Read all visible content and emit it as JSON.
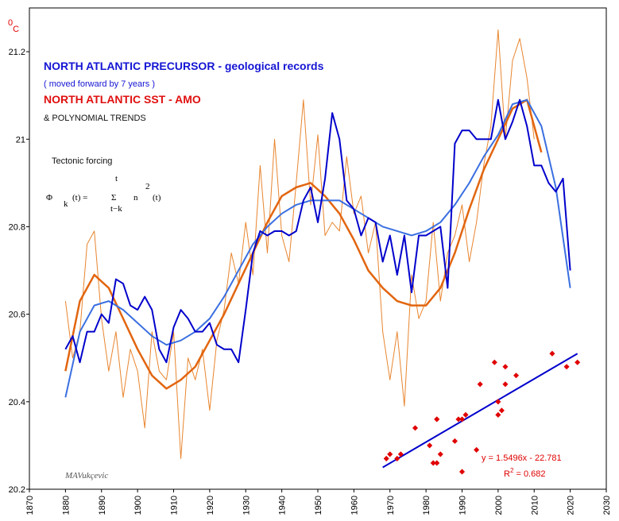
{
  "chart_data": {
    "type": "line",
    "y_unit": {
      "sup": "0",
      "base": "C"
    },
    "xlim": [
      1870,
      2030
    ],
    "xticks": [
      1870,
      1880,
      1890,
      1900,
      1910,
      1920,
      1930,
      1940,
      1950,
      1960,
      1970,
      1980,
      1990,
      2000,
      2010,
      2020,
      2030
    ],
    "ylim": [
      20.2,
      21.3
    ],
    "yticks": [
      20.2,
      20.4,
      20.6,
      20.8,
      21,
      21.2
    ],
    "series": [
      {
        "name": "NORTH ATLANTIC SST - AMO",
        "legend_color": "#e01010",
        "color": "#e8852e",
        "width": 1,
        "x": [
          1880,
          1882,
          1884,
          1886,
          1888,
          1890,
          1892,
          1894,
          1896,
          1898,
          1900,
          1902,
          1904,
          1906,
          1908,
          1910,
          1912,
          1914,
          1916,
          1918,
          1920,
          1922,
          1924,
          1926,
          1928,
          1930,
          1932,
          1934,
          1936,
          1938,
          1940,
          1942,
          1944,
          1946,
          1948,
          1950,
          1952,
          1954,
          1956,
          1958,
          1960,
          1962,
          1964,
          1966,
          1968,
          1970,
          1972,
          1974,
          1976,
          1978,
          1980,
          1982,
          1984,
          1986,
          1988,
          1990,
          1992,
          1994,
          1996,
          1998,
          2000,
          2002,
          2004,
          2006,
          2008,
          2010
        ],
        "values": [
          20.63,
          20.5,
          20.56,
          20.76,
          20.79,
          20.59,
          20.47,
          20.56,
          20.41,
          20.52,
          20.47,
          20.34,
          20.56,
          20.47,
          20.45,
          20.56,
          20.27,
          20.5,
          20.45,
          20.52,
          20.38,
          20.54,
          20.61,
          20.74,
          20.67,
          20.81,
          20.69,
          20.94,
          20.74,
          21.0,
          20.78,
          20.72,
          20.9,
          21.09,
          20.85,
          21.01,
          20.78,
          20.81,
          20.79,
          20.96,
          20.83,
          20.87,
          20.74,
          20.81,
          20.56,
          20.45,
          20.56,
          20.39,
          20.69,
          20.59,
          20.63,
          20.81,
          20.63,
          20.74,
          20.78,
          20.85,
          20.72,
          20.81,
          20.94,
          21.03,
          21.25,
          21.0,
          21.18,
          21.23,
          21.14,
          21.0
        ]
      },
      {
        "color": "#e2650f",
        "width": 2.5,
        "x": [
          1880,
          1884,
          1888,
          1892,
          1896,
          1900,
          1904,
          1908,
          1912,
          1916,
          1920,
          1924,
          1928,
          1932,
          1936,
          1940,
          1944,
          1948,
          1952,
          1956,
          1960,
          1964,
          1968,
          1972,
          1976,
          1980,
          1984,
          1988,
          1992,
          1996,
          2000,
          2004,
          2008,
          2012
        ],
        "values": [
          20.47,
          20.63,
          20.69,
          20.66,
          20.59,
          20.52,
          20.46,
          20.43,
          20.45,
          20.48,
          20.54,
          20.6,
          20.67,
          20.74,
          20.81,
          20.87,
          20.89,
          20.9,
          20.87,
          20.83,
          20.77,
          20.7,
          20.66,
          20.63,
          20.62,
          20.62,
          20.66,
          20.74,
          20.84,
          20.93,
          21.0,
          21.07,
          21.09,
          20.97
        ]
      },
      {
        "color": "#3a6fe0",
        "width": 2,
        "x": [
          1880,
          1884,
          1888,
          1892,
          1896,
          1900,
          1904,
          1908,
          1912,
          1916,
          1920,
          1924,
          1928,
          1932,
          1936,
          1940,
          1944,
          1948,
          1952,
          1956,
          1960,
          1964,
          1968,
          1972,
          1976,
          1980,
          1984,
          1988,
          1992,
          1996,
          2000,
          2004,
          2008,
          2012,
          2016,
          2020
        ],
        "values": [
          20.41,
          20.56,
          20.62,
          20.63,
          20.61,
          20.58,
          20.55,
          20.53,
          20.54,
          20.56,
          20.59,
          20.64,
          20.7,
          20.76,
          20.8,
          20.83,
          20.85,
          20.86,
          20.86,
          20.86,
          20.84,
          20.82,
          20.8,
          20.79,
          20.78,
          20.79,
          20.81,
          20.85,
          20.9,
          20.96,
          21.01,
          21.08,
          21.09,
          21.03,
          20.89,
          20.66
        ]
      },
      {
        "name": "NORTH ATLANTIC PRECURSOR - geological records",
        "legend_color": "#1414d4",
        "color": "#0000cc",
        "width": 2,
        "x": [
          1880,
          1882,
          1884,
          1886,
          1888,
          1890,
          1892,
          1894,
          1896,
          1898,
          1900,
          1902,
          1904,
          1906,
          1908,
          1910,
          1912,
          1914,
          1916,
          1918,
          1920,
          1922,
          1924,
          1926,
          1928,
          1930,
          1932,
          1934,
          1936,
          1938,
          1940,
          1942,
          1944,
          1946,
          1948,
          1950,
          1952,
          1954,
          1956,
          1958,
          1960,
          1962,
          1964,
          1966,
          1968,
          1970,
          1972,
          1974,
          1976,
          1978,
          1980,
          1982,
          1984,
          1986,
          1988,
          1990,
          1992,
          1994,
          1996,
          1998,
          2000,
          2002,
          2004,
          2006,
          2008,
          2010,
          2012,
          2014,
          2016,
          2018,
          2020
        ],
        "values": [
          20.52,
          20.55,
          20.49,
          20.56,
          20.56,
          20.6,
          20.58,
          20.68,
          20.67,
          20.62,
          20.61,
          20.64,
          20.61,
          20.52,
          20.49,
          20.57,
          20.61,
          20.59,
          20.56,
          20.56,
          20.58,
          20.53,
          20.52,
          20.52,
          20.49,
          20.61,
          20.74,
          20.79,
          20.78,
          20.79,
          20.79,
          20.78,
          20.79,
          20.86,
          20.89,
          20.81,
          20.91,
          21.06,
          21.0,
          20.86,
          20.84,
          20.78,
          20.82,
          20.81,
          20.72,
          20.78,
          20.69,
          20.78,
          20.65,
          20.78,
          20.78,
          20.79,
          20.8,
          20.66,
          20.99,
          21.02,
          21.02,
          21.0,
          21.0,
          21.0,
          21.09,
          21.0,
          21.04,
          21.09,
          21.03,
          20.94,
          20.94,
          20.9,
          20.88,
          20.91,
          20.7
        ]
      },
      {
        "color": "#0000cc",
        "width": 2,
        "x": [
          1968,
          2022
        ],
        "values": [
          20.25,
          20.51
        ]
      }
    ],
    "scatter": {
      "color": "#e00000",
      "x": [
        1969,
        1970,
        1972,
        1973,
        1977,
        1981,
        1982,
        1983,
        1983,
        1983,
        1984,
        1988,
        1989,
        1990,
        1990,
        1991,
        1994,
        1995,
        1999,
        2000,
        2000,
        2001,
        2002,
        2002,
        2005,
        2015,
        2019,
        2022
      ],
      "values": [
        20.27,
        20.28,
        20.27,
        20.28,
        20.34,
        20.3,
        20.26,
        20.26,
        20.36,
        20.36,
        20.28,
        20.31,
        20.36,
        20.24,
        20.36,
        20.37,
        20.29,
        20.44,
        20.49,
        20.37,
        20.4,
        20.38,
        20.44,
        20.48,
        20.46,
        20.51,
        20.48,
        20.49
      ]
    },
    "legend_note": "( moved forward by 7 years )",
    "trend_note": "& POLYNOMIAL TRENDS",
    "fit_label": "y = 1.5496x - 22.781",
    "r2_label": {
      "base": "R",
      "sup": "2",
      "rest": " = 0.682"
    },
    "formula": {
      "title": "Tectonic forcing",
      "phi": "Φ",
      "sub": "k",
      "mid": "(t) =",
      "sigma": "Σ",
      "top": "t",
      "bottom": "t−k",
      "n": "n",
      "pow": "2",
      "end": "(t)"
    },
    "signature": "MAVukçevic"
  }
}
